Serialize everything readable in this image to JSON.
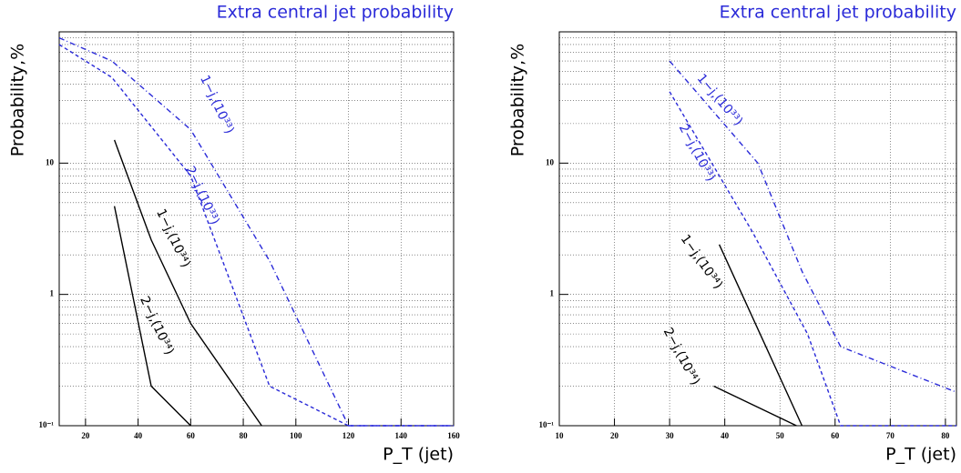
{
  "chart_data": [
    {
      "type": "line",
      "title": "Extra central jet probability",
      "ylabel": "Probability,%",
      "xlabel": "P_T (jet)",
      "xlim": [
        10,
        160
      ],
      "xticks": [
        20,
        40,
        60,
        80,
        100,
        120,
        140,
        160
      ],
      "ylim": [
        0.1,
        100
      ],
      "yticks": [
        {
          "value": 0.1,
          "label": "10⁻¹"
        },
        1,
        10
      ],
      "log_y": true,
      "grid": true,
      "series": [
        {
          "name": "1−j,(10³³)",
          "color": "#2a2ad8",
          "linestyle": "dashdot",
          "x": [
            10,
            30,
            60,
            90,
            120,
            160
          ],
          "values": [
            90,
            60,
            18,
            1.8,
            0.1,
            0.1
          ]
        },
        {
          "name": "2−j,(10³³)",
          "color": "#2a2ad8",
          "linestyle": "dashed",
          "x": [
            10,
            30,
            60,
            90,
            120,
            160
          ],
          "values": [
            80,
            45,
            8,
            0.2,
            0.1,
            0.1
          ]
        },
        {
          "name": "1−j,(10³⁴)",
          "color": "#000000",
          "linestyle": "solid",
          "x": [
            31,
            45,
            60,
            87
          ],
          "values": [
            15,
            2.6,
            0.6,
            0.1
          ]
        },
        {
          "name": "2−j,(10³⁴)",
          "color": "#000000",
          "linestyle": "solid",
          "x": [
            31,
            45,
            60
          ],
          "values": [
            4.7,
            0.2,
            0.1
          ]
        }
      ]
    },
    {
      "type": "line",
      "title": "Extra central jet probability",
      "ylabel": "Probability,%",
      "xlabel": "P_T (jet)",
      "xlim": [
        10,
        82
      ],
      "xticks": [
        10,
        20,
        30,
        40,
        50,
        60,
        70,
        80
      ],
      "ylim": [
        0.1,
        100
      ],
      "yticks": [
        {
          "value": 0.1,
          "label": "10⁻¹"
        },
        1,
        10
      ],
      "log_y": true,
      "grid": true,
      "series": [
        {
          "name": "1−j,(10³³)",
          "color": "#2a2ad8",
          "linestyle": "dashdot",
          "x": [
            30,
            46,
            54,
            61,
            82
          ],
          "values": [
            60,
            10,
            1.5,
            0.4,
            0.18
          ]
        },
        {
          "name": "2−j,(10³³)",
          "color": "#2a2ad8",
          "linestyle": "dashed",
          "x": [
            30,
            45,
            55,
            61,
            82
          ],
          "values": [
            35,
            3,
            0.5,
            0.1,
            0.1
          ]
        },
        {
          "name": "1−j,(10³⁴)",
          "color": "#000000",
          "linestyle": "solid",
          "x": [
            39,
            54
          ],
          "values": [
            2.4,
            0.1
          ]
        },
        {
          "name": "2−j,(10³⁴)",
          "color": "#000000",
          "linestyle": "solid",
          "x": [
            38,
            53
          ],
          "values": [
            0.2,
            0.1
          ]
        }
      ]
    }
  ]
}
